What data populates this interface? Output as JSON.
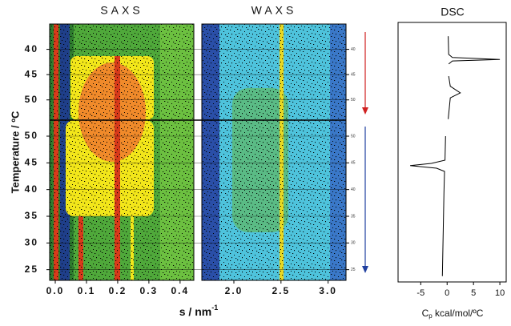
{
  "chart_data": [
    {
      "type": "heatmap",
      "title": "SAXS",
      "xlabel": {
        "text": "s / nm",
        "sup": "-1"
      },
      "ylabel": "Temperature / ºC",
      "xlim": [
        -0.018,
        0.444
      ],
      "xticks": [
        {
          "value": 0,
          "label": "0.0"
        },
        0.1,
        0.2,
        0.3,
        0.4
      ],
      "y_segments": [
        {
          "ylim": [
            35,
            54
          ],
          "yticks": [
            40,
            45,
            50
          ]
        },
        {
          "ylim": [
            53,
            23
          ],
          "yticks": [
            50,
            45,
            40,
            35,
            30,
            25
          ]
        }
      ]
    },
    {
      "type": "heatmap",
      "title": "WAXS",
      "xlim": [
        1.66,
        3.19
      ],
      "xticks": [
        {
          "value": 2,
          "label": "2.0"
        },
        2.5,
        {
          "value": 3,
          "label": "3.0"
        }
      ]
    },
    {
      "type": "line",
      "title": "DSC",
      "xlabel": {
        "text": "C",
        "sub": "p",
        "rest": " kcal/mol/ºC"
      },
      "xlim": [
        -9.3,
        11.2
      ],
      "xticks": [
        -5,
        0,
        5,
        10
      ],
      "series": [
        {
          "color": "#000000",
          "segment": 0,
          "values": [
            0.2,
            0.3,
            1,
            10,
            1,
            0.3,
            null,
            0.3,
            0.6,
            2.5,
            0.6,
            0.2
          ],
          "y": [
            37.4,
            41.0,
            41.6,
            42.0,
            42.3,
            42.9,
            null,
            45.3,
            47.3,
            48.6,
            49.6,
            53.8
          ]
        },
        {
          "color": "#000000",
          "segment": 1,
          "values": [
            -0.3,
            -0.4,
            -3,
            -7,
            -2,
            -0.5,
            -0.6,
            -0.9
          ],
          "y": [
            50.0,
            45.5,
            44.9,
            44.5,
            44.0,
            43.4,
            39.5,
            23.8
          ]
        }
      ]
    }
  ]
}
